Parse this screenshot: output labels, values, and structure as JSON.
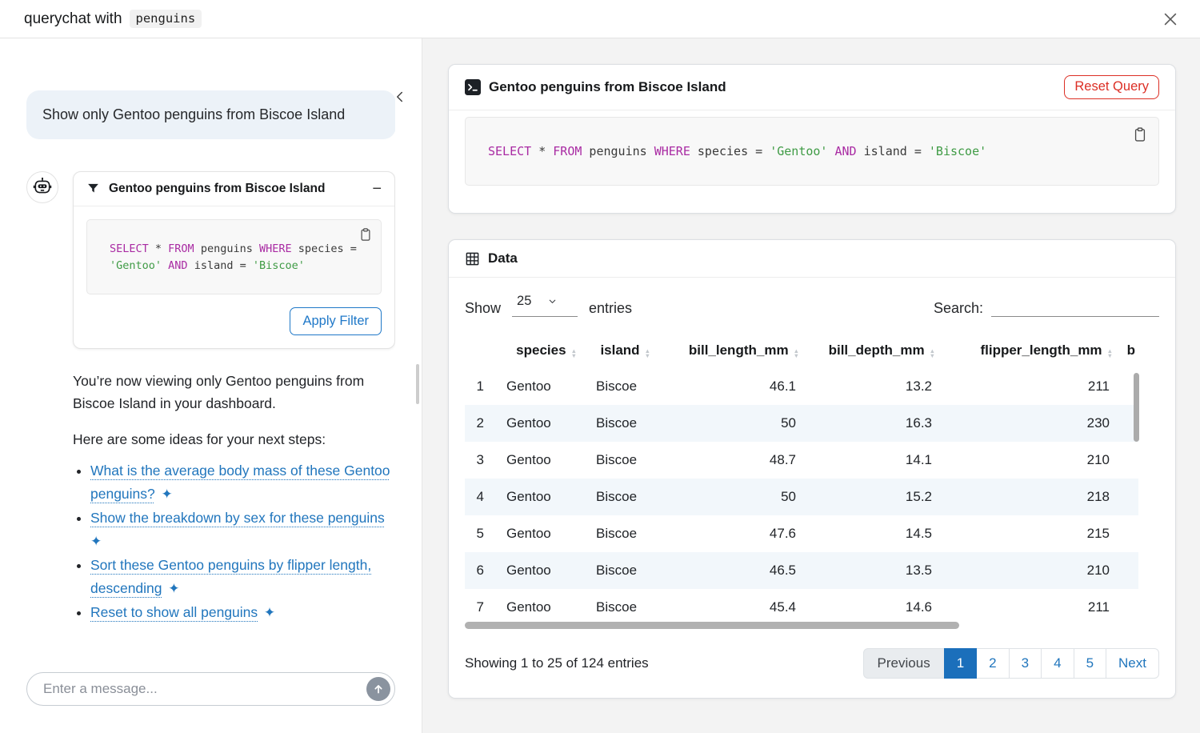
{
  "header": {
    "title_prefix": "querychat with",
    "dataset": "penguins"
  },
  "colors": {
    "accent_blue": "#2176bd",
    "active_page_blue": "#1b6fbb",
    "danger_red": "#dc2f25",
    "sql_keyword": "#a92ba3",
    "sql_string": "#3f9b45",
    "user_bubble": "#ecf2f8",
    "row_stripe": "#f2f7fb"
  },
  "sql": {
    "tokens": [
      [
        "k",
        "SELECT"
      ],
      [
        "p",
        " * "
      ],
      [
        "k",
        "FROM"
      ],
      [
        "p",
        " penguins "
      ],
      [
        "k",
        "WHERE"
      ],
      [
        "p",
        " species = "
      ],
      [
        "s",
        "'Gentoo'"
      ],
      [
        "p",
        " "
      ],
      [
        "k",
        "AND"
      ],
      [
        "p",
        " island = "
      ],
      [
        "s",
        "'Biscoe'"
      ]
    ]
  },
  "chat": {
    "user_message": "Show only Gentoo penguins from Biscoe Island",
    "filter_card": {
      "title": "Gentoo penguins from Biscoe Island",
      "apply_button": "Apply Filter"
    },
    "response_text": "You’re now viewing only Gentoo penguins from Biscoe Island in your dashboard.",
    "ideas_intro": "Here are some ideas for your next steps:",
    "suggestions": [
      "What is the average body mass of these Gentoo penguins?",
      "Show the breakdown by sex for these penguins",
      "Sort these Gentoo penguins by flipper length, descending",
      "Reset to show all penguins"
    ],
    "input_placeholder": "Enter a message..."
  },
  "main": {
    "query_card": {
      "title": "Gentoo penguins from Biscoe Island",
      "reset_button": "Reset Query"
    },
    "data_card": {
      "title": "Data",
      "length_control": {
        "show_label": "Show",
        "selected": "25",
        "entries_label": "entries"
      },
      "search_label": "Search:",
      "table": {
        "columns": [
          {
            "label": "",
            "sortable": false
          },
          {
            "label": "species",
            "sortable": true
          },
          {
            "label": "island",
            "sortable": true
          },
          {
            "label": "bill_length_mm",
            "sortable": true
          },
          {
            "label": "bill_depth_mm",
            "sortable": true
          },
          {
            "label": "flipper_length_mm",
            "sortable": true
          },
          {
            "label": "b",
            "sortable": false
          }
        ],
        "rows": [
          [
            "1",
            "Gentoo",
            "Biscoe",
            "46.1",
            "13.2",
            "211"
          ],
          [
            "2",
            "Gentoo",
            "Biscoe",
            "50",
            "16.3",
            "230"
          ],
          [
            "3",
            "Gentoo",
            "Biscoe",
            "48.7",
            "14.1",
            "210"
          ],
          [
            "4",
            "Gentoo",
            "Biscoe",
            "50",
            "15.2",
            "218"
          ],
          [
            "5",
            "Gentoo",
            "Biscoe",
            "47.6",
            "14.5",
            "215"
          ],
          [
            "6",
            "Gentoo",
            "Biscoe",
            "46.5",
            "13.5",
            "210"
          ],
          [
            "7",
            "Gentoo",
            "Biscoe",
            "45.4",
            "14.6",
            "211"
          ]
        ]
      },
      "info": "Showing 1 to 25 of 124 entries",
      "pagination": [
        {
          "label": "Previous",
          "state": "disabled"
        },
        {
          "label": "1",
          "state": "active"
        },
        {
          "label": "2",
          "state": ""
        },
        {
          "label": "3",
          "state": ""
        },
        {
          "label": "4",
          "state": ""
        },
        {
          "label": "5",
          "state": ""
        },
        {
          "label": "Next",
          "state": ""
        }
      ]
    }
  }
}
